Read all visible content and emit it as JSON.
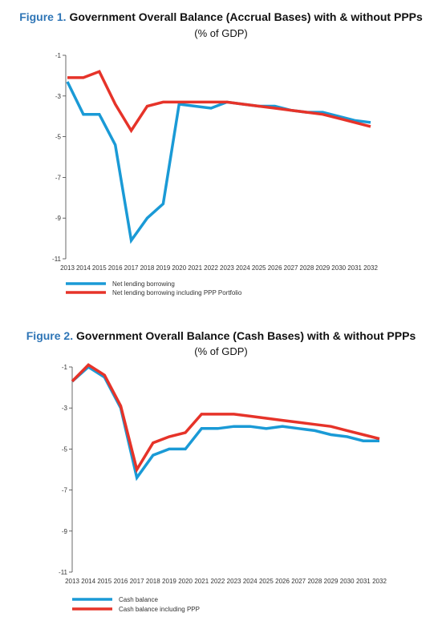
{
  "figures": [
    {
      "number": "Figure 1.",
      "title": "Government Overall Balance (Accrual Bases) with & without PPPs",
      "subtitle": "(% of GDP)"
    },
    {
      "number": "Figure 2.",
      "title": "Government Overall Balance (Cash Bases) with & without PPPs",
      "subtitle": "(% of GDP)"
    }
  ],
  "chart_data": [
    {
      "type": "line",
      "title": "Government Overall Balance (Accrual Bases) with & without PPPs",
      "ylabel": "(% of GDP)",
      "x": [
        "2013",
        "2014",
        "2015",
        "2016",
        "2017",
        "2018",
        "2019",
        "2020",
        "2021",
        "2022",
        "2023",
        "2024",
        "2025",
        "2026",
        "2027",
        "2028",
        "2029",
        "2030",
        "2031",
        "2032"
      ],
      "ylim": [
        -11,
        -1
      ],
      "yticks": [
        -1,
        -3,
        -5,
        -7,
        -9,
        -11
      ],
      "grid": false,
      "legend_position": "bottom-left",
      "series": [
        {
          "name": "Net lending borrowing",
          "color": "#1a9ad6",
          "values": [
            -2.3,
            -3.9,
            -3.9,
            -5.4,
            -10.1,
            -9.0,
            -8.3,
            -3.4,
            -3.5,
            -3.6,
            -3.3,
            -3.4,
            -3.5,
            -3.5,
            -3.7,
            -3.8,
            -3.8,
            -4.0,
            -4.2,
            -4.3
          ]
        },
        {
          "name": "Net lending borrowing including PPP Portfolio",
          "color": "#e63329",
          "values": [
            -2.1,
            -2.1,
            -1.8,
            -3.4,
            -4.7,
            -3.5,
            -3.3,
            -3.3,
            -3.3,
            -3.3,
            -3.3,
            -3.4,
            -3.5,
            -3.6,
            -3.7,
            -3.8,
            -3.9,
            -4.1,
            -4.3,
            -4.5
          ]
        }
      ]
    },
    {
      "type": "line",
      "title": "Government Overall Balance (Cash Bases) with & without PPPs",
      "ylabel": "(% of GDP)",
      "x": [
        "2013",
        "2014",
        "2015",
        "2016",
        "2017",
        "2018",
        "2019",
        "2020",
        "2021",
        "2022",
        "2023",
        "2024",
        "2025",
        "2026",
        "2027",
        "2028",
        "2029",
        "2030",
        "2031",
        "2032"
      ],
      "ylim": [
        -11,
        -1
      ],
      "yticks": [
        -1,
        -3,
        -5,
        -7,
        -9,
        -11
      ],
      "grid": false,
      "legend_position": "bottom-left",
      "series": [
        {
          "name": "Cash balance",
          "color": "#1a9ad6",
          "values": [
            -1.7,
            -1.0,
            -1.5,
            -3.0,
            -6.4,
            -5.3,
            -5.0,
            -5.0,
            -4.0,
            -4.0,
            -3.9,
            -3.9,
            -4.0,
            -3.9,
            -4.0,
            -4.1,
            -4.3,
            -4.4,
            -4.6,
            -4.6
          ]
        },
        {
          "name": "Cash balance including PPP",
          "color": "#e63329",
          "values": [
            -1.7,
            -0.9,
            -1.4,
            -2.9,
            -6.0,
            -4.7,
            -4.4,
            -4.2,
            -3.3,
            -3.3,
            -3.3,
            -3.4,
            -3.5,
            -3.6,
            -3.7,
            -3.8,
            -3.9,
            -4.1,
            -4.3,
            -4.5
          ]
        }
      ]
    }
  ]
}
